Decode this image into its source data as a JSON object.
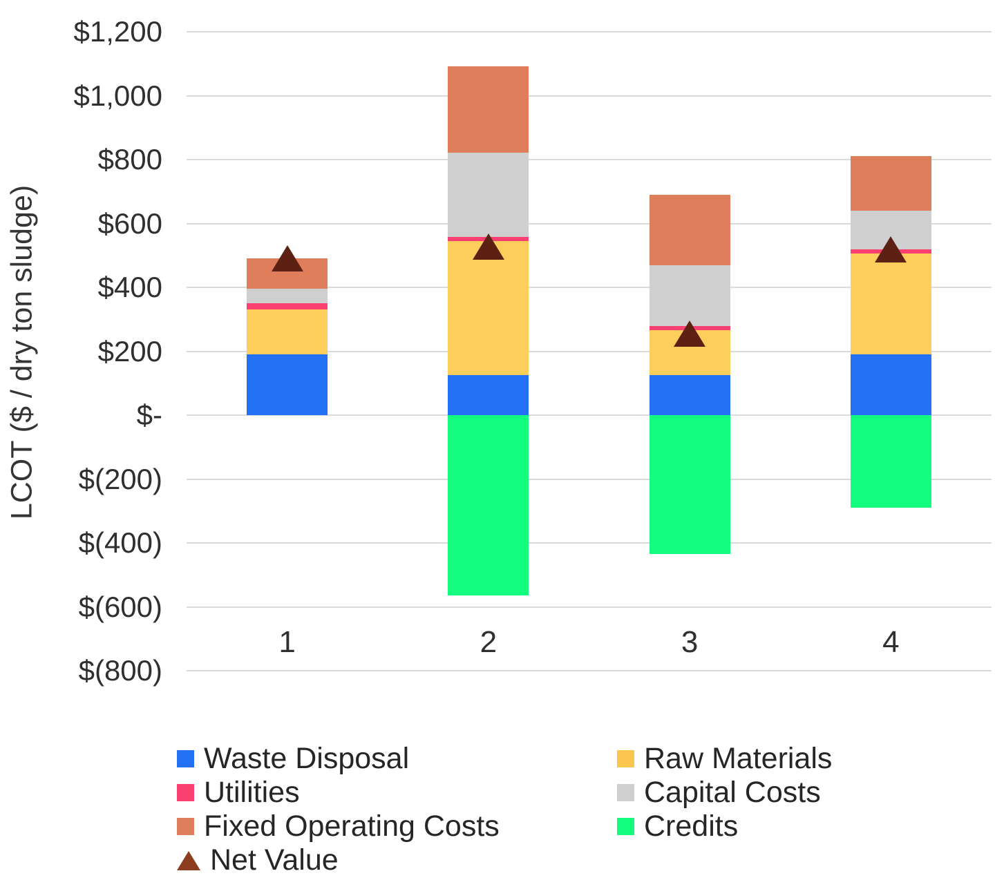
{
  "chart_data": {
    "type": "bar",
    "subtype": "stacked-with-net-value-markers",
    "title": "",
    "xlabel": "",
    "ylabel": "LCOT ($ / dry ton sludge)",
    "categories": [
      "1",
      "2",
      "3",
      "4"
    ],
    "series": [
      {
        "name": "Waste Disposal",
        "color": "#2471F5",
        "values": [
          190,
          125,
          125,
          190
        ]
      },
      {
        "name": "Raw Materials",
        "color": "#FDCE5B",
        "values": [
          140,
          420,
          140,
          315
        ]
      },
      {
        "name": "Utilities",
        "color": "#FA4071",
        "values": [
          20,
          12,
          15,
          15
        ]
      },
      {
        "name": "Capital Costs",
        "color": "#D0CFCF",
        "values": [
          45,
          265,
          190,
          120
        ]
      },
      {
        "name": "Fixed Operating Costs",
        "color": "#DF7E5B",
        "values": [
          95,
          270,
          220,
          170
        ]
      },
      {
        "name": "Credits",
        "color": "#13FC80",
        "values": [
          0,
          -565,
          -435,
          -290
        ]
      }
    ],
    "net_series": {
      "name": "Net Value",
      "color": "#5C2112",
      "values": [
        490,
        527,
        255,
        520
      ]
    },
    "y_axis": {
      "min": -800,
      "max": 1200,
      "step": 200,
      "tick_values": [
        1200,
        1000,
        800,
        600,
        400,
        200,
        0,
        -200,
        -400,
        -600,
        -800
      ],
      "tick_labels": [
        "$1,200",
        "$1,000",
        "$800",
        "$600",
        "$400",
        "$200",
        "$-",
        "$(200)",
        "$(400)",
        "$(600)",
        "$(800)"
      ]
    },
    "grid": true,
    "gridline_color": "#dadada",
    "legend_position": "bottom"
  },
  "legend": {
    "columns": [
      {
        "items": [
          {
            "label": "Waste Disposal",
            "marker": "square",
            "color": "#2471F5"
          },
          {
            "label": "Utilities",
            "marker": "square",
            "color": "#FA4071"
          },
          {
            "label": "Fixed Operating Costs",
            "marker": "square",
            "color": "#DF7E5B"
          },
          {
            "label": "Net Value",
            "marker": "triangle",
            "color": "#8C3D20"
          }
        ]
      },
      {
        "items": [
          {
            "label": "Raw Materials",
            "marker": "square",
            "color": "#FBC64E"
          },
          {
            "label": "Capital Costs",
            "marker": "square",
            "color": "#D0CFCF"
          },
          {
            "label": "Credits",
            "marker": "square",
            "color": "#13FC80"
          }
        ]
      }
    ]
  }
}
